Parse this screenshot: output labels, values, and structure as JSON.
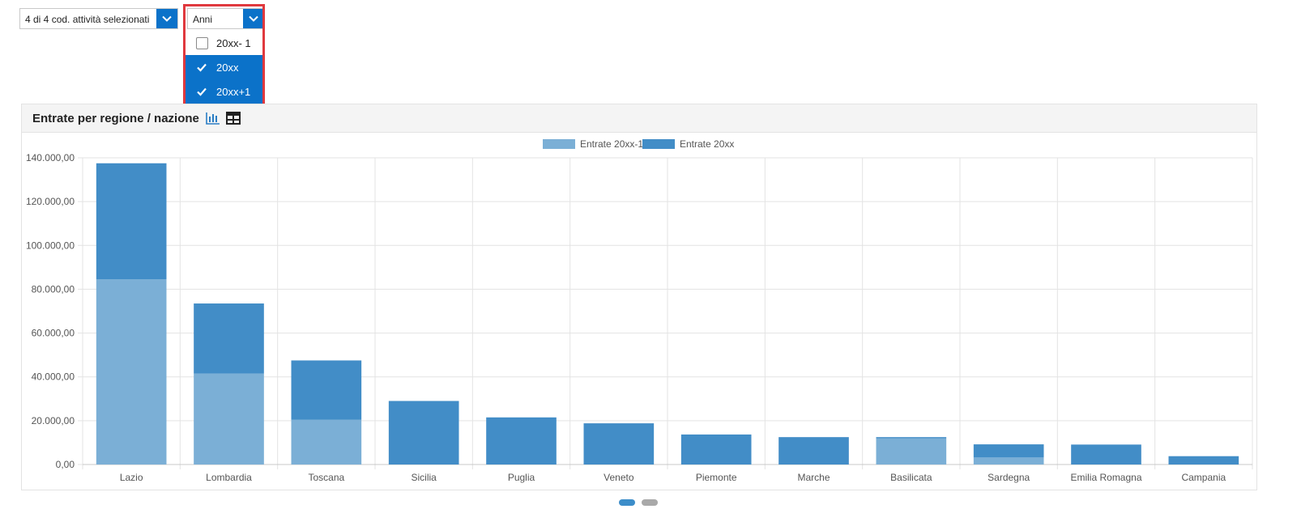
{
  "filters": {
    "activities": {
      "value": "4 di 4 cod. attività selezionati"
    },
    "years": {
      "value": "Anni",
      "options": [
        {
          "label": "20xx- 1",
          "checked": false
        },
        {
          "label": "20xx",
          "checked": true
        },
        {
          "label": "20xx+1",
          "checked": true
        }
      ]
    }
  },
  "panel": {
    "title": "Entrate per regione / nazione",
    "icons": [
      "bar-chart-icon",
      "table-icon"
    ]
  },
  "chart_data": {
    "type": "bar",
    "stacked": true,
    "categories": [
      "Lazio",
      "Lombardia",
      "Toscana",
      "Sicilia",
      "Puglia",
      "Veneto",
      "Piemonte",
      "Marche",
      "Basilicata",
      "Sardegna",
      "Emilia Romagna",
      "Campania"
    ],
    "series": [
      {
        "name": "Entrate 20xx-1",
        "color": "#7bafd6",
        "values": [
          84500,
          41500,
          20500,
          0,
          0,
          0,
          0,
          0,
          12000,
          3200,
          0,
          0
        ]
      },
      {
        "name": "Entrate 20xx",
        "color": "#428dc7",
        "values": [
          53000,
          32000,
          27000,
          29000,
          21500,
          18800,
          13700,
          12500,
          500,
          6000,
          9100,
          3800
        ]
      }
    ],
    "yticks": [
      "0,00",
      "20.000,00",
      "40.000,00",
      "60.000,00",
      "80.000,00",
      "100.000,00",
      "120.000,00",
      "140.000,00"
    ],
    "ylim": [
      0,
      140000
    ],
    "grid": true,
    "legend": "top-center"
  },
  "pager": {
    "pages": 2,
    "active": 1
  }
}
